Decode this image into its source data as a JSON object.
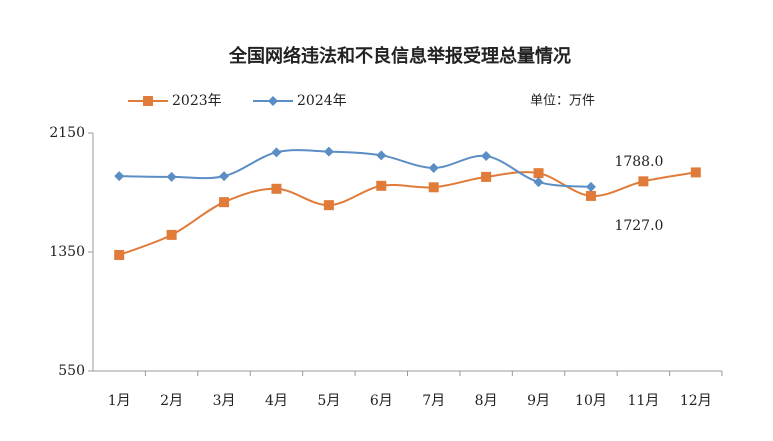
{
  "chart_data": {
    "type": "line",
    "title": "全国网络违法和不良信息举报受理总量情况",
    "unit": "单位：万件",
    "categories": [
      "1月",
      "2月",
      "3月",
      "4月",
      "5月",
      "6月",
      "7月",
      "8月",
      "9月",
      "10月",
      "11月",
      "12月"
    ],
    "series": [
      {
        "name": "2023年",
        "color": "#e07b39",
        "marker": "square",
        "values": [
          1330,
          1465,
          1685,
          1775,
          1665,
          1795,
          1785,
          1855,
          1880,
          1727,
          1825,
          1885
        ],
        "value_labels": [
          null,
          null,
          null,
          null,
          null,
          null,
          null,
          null,
          null,
          "1727.0",
          null,
          null
        ]
      },
      {
        "name": "2024年",
        "color": "#5b8ec4",
        "marker": "diamond",
        "values": [
          1860,
          1855,
          1860,
          2020,
          2025,
          2000,
          1915,
          1995,
          1820,
          1788,
          null,
          null
        ],
        "value_labels": [
          null,
          null,
          null,
          null,
          null,
          null,
          null,
          null,
          null,
          "1788.0",
          null,
          null
        ]
      }
    ],
    "ylim": [
      550,
      2150
    ],
    "yticks": [
      550,
      1350,
      2150
    ],
    "grid": false,
    "legend": "top-left"
  }
}
